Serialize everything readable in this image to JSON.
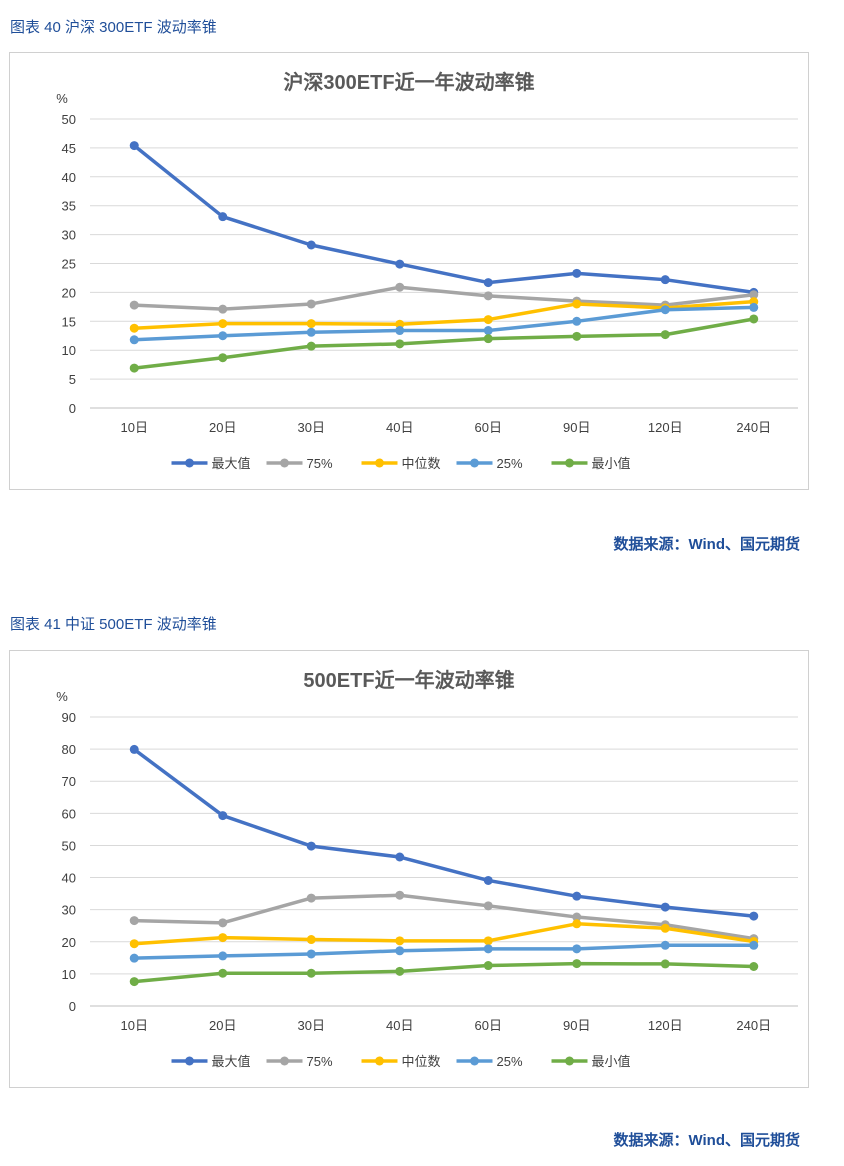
{
  "figures": [
    {
      "label": "图表 40  沪深 300ETF 波动率锥",
      "source": "数据来源：Wind、国元期货"
    },
    {
      "label": "图表 41  中证 500ETF 波动率锥",
      "source": "数据来源：Wind、国元期货"
    }
  ],
  "chart_data": [
    {
      "type": "line",
      "title": "沪深300ETF近一年波动率锥",
      "ylabel": "%",
      "xlabel": "",
      "ylim": [
        0,
        50
      ],
      "yticks": [
        0,
        5,
        10,
        15,
        20,
        25,
        30,
        35,
        40,
        45,
        50
      ],
      "grid": true,
      "legend_position": "bottom",
      "categories": [
        "10日",
        "20日",
        "30日",
        "40日",
        "60日",
        "90日",
        "120日",
        "240日"
      ],
      "series": [
        {
          "name": "最大值",
          "color": "#4472c4",
          "values": [
            45.4,
            33.1,
            28.2,
            24.9,
            21.7,
            23.3,
            22.2,
            20.0
          ]
        },
        {
          "name": "75%",
          "color": "#a5a5a5",
          "values": [
            17.8,
            17.1,
            18.0,
            20.9,
            19.4,
            18.5,
            17.8,
            19.6
          ]
        },
        {
          "name": "中位数",
          "color": "#ffc000",
          "values": [
            13.8,
            14.6,
            14.6,
            14.5,
            15.3,
            18.0,
            17.3,
            18.4
          ]
        },
        {
          "name": "25%",
          "color": "#5b9bd5",
          "values": [
            11.8,
            12.5,
            13.1,
            13.4,
            13.4,
            15.0,
            17.0,
            17.4
          ]
        },
        {
          "name": "最小值",
          "color": "#70ad47",
          "values": [
            6.9,
            8.7,
            10.7,
            11.1,
            12.0,
            12.4,
            12.7,
            15.4
          ]
        }
      ]
    },
    {
      "type": "line",
      "title": "500ETF近一年波动率锥",
      "ylabel": "%",
      "xlabel": "",
      "ylim": [
        0,
        90
      ],
      "yticks": [
        0,
        10,
        20,
        30,
        40,
        50,
        60,
        70,
        80,
        90
      ],
      "grid": true,
      "legend_position": "bottom",
      "categories": [
        "10日",
        "20日",
        "30日",
        "40日",
        "60日",
        "90日",
        "120日",
        "240日"
      ],
      "series": [
        {
          "name": "最大值",
          "color": "#4472c4",
          "values": [
            79.9,
            59.3,
            49.8,
            46.4,
            39.1,
            34.2,
            30.8,
            28.0
          ]
        },
        {
          "name": "75%",
          "color": "#a5a5a5",
          "values": [
            26.6,
            25.9,
            33.6,
            34.5,
            31.2,
            27.7,
            25.3,
            21.0
          ]
        },
        {
          "name": "中位数",
          "color": "#ffc000",
          "values": [
            19.4,
            21.3,
            20.7,
            20.3,
            20.3,
            25.6,
            24.2,
            20.1
          ]
        },
        {
          "name": "25%",
          "color": "#5b9bd5",
          "values": [
            14.9,
            15.6,
            16.2,
            17.2,
            17.8,
            17.8,
            18.9,
            18.9
          ]
        },
        {
          "name": "最小值",
          "color": "#70ad47",
          "values": [
            7.6,
            10.2,
            10.2,
            10.8,
            12.6,
            13.2,
            13.1,
            12.3
          ]
        }
      ]
    }
  ]
}
